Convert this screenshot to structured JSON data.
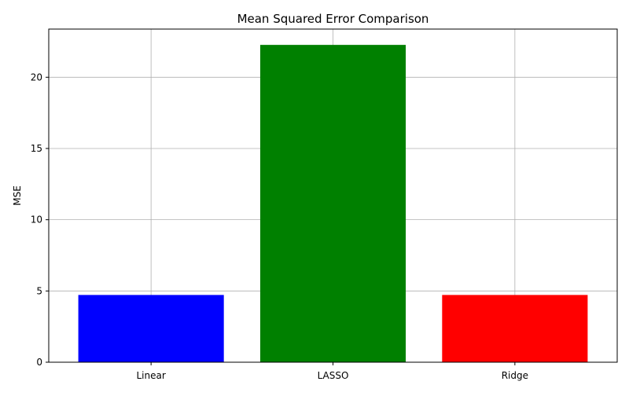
{
  "chart_data": {
    "type": "bar",
    "title": "Mean Squared Error Comparison",
    "xlabel": "",
    "ylabel": "MSE",
    "categories": [
      "Linear",
      "LASSO",
      "Ridge"
    ],
    "values": [
      4.72,
      22.27,
      4.72
    ],
    "colors": [
      "#0000ff",
      "#008000",
      "#ff0000"
    ],
    "ylim": [
      0,
      23.38
    ],
    "yticks": [
      0,
      5,
      10,
      15,
      20
    ],
    "grid": true,
    "legend": "none"
  }
}
